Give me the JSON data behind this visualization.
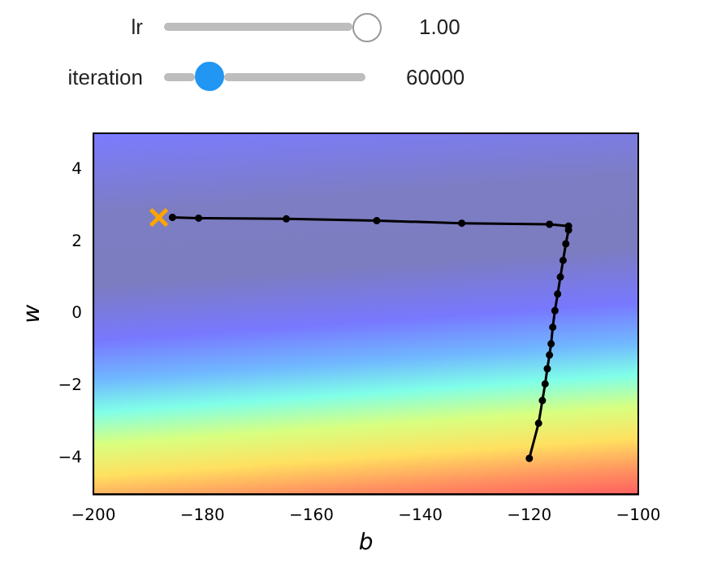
{
  "chart_data": {
    "type": "line",
    "xlabel": "b",
    "ylabel": "w",
    "xlim": [
      -200,
      -100
    ],
    "xticks": [
      -200,
      -180,
      -160,
      -140,
      -120,
      -100
    ],
    "ylim": [
      -5,
      5
    ],
    "yticks": [
      -4,
      -2,
      0,
      2,
      4
    ],
    "grid": false,
    "legend": false,
    "annotations": [
      "lr",
      "1.00",
      "iteration",
      "60000"
    ],
    "series": [
      {
        "type": "line",
        "color": "#000000",
        "marker": "circle",
        "x": [
          -120,
          -118.3,
          -117.6,
          -117.1,
          -116.7,
          -116.3,
          -116,
          -115.7,
          -115.3,
          -114.8,
          -114.3,
          -113.8,
          -113.3,
          -112.8,
          -112.8,
          -116.3,
          -132.4,
          -148,
          -164.6,
          -180.7,
          -185.5
        ],
        "values": [
          -4,
          -3.03,
          -2.4,
          -1.94,
          -1.52,
          -1.14,
          -0.83,
          -0.37,
          0.09,
          0.55,
          1.02,
          1.48,
          1.94,
          2.32,
          2.43,
          2.48,
          2.51,
          2.58,
          2.63,
          2.65,
          2.67
        ]
      },
      {
        "type": "scatter",
        "color": "#ffa500",
        "marker": "cross",
        "x": [
          -188
        ],
        "values": [
          2.67
        ]
      }
    ]
  }
}
